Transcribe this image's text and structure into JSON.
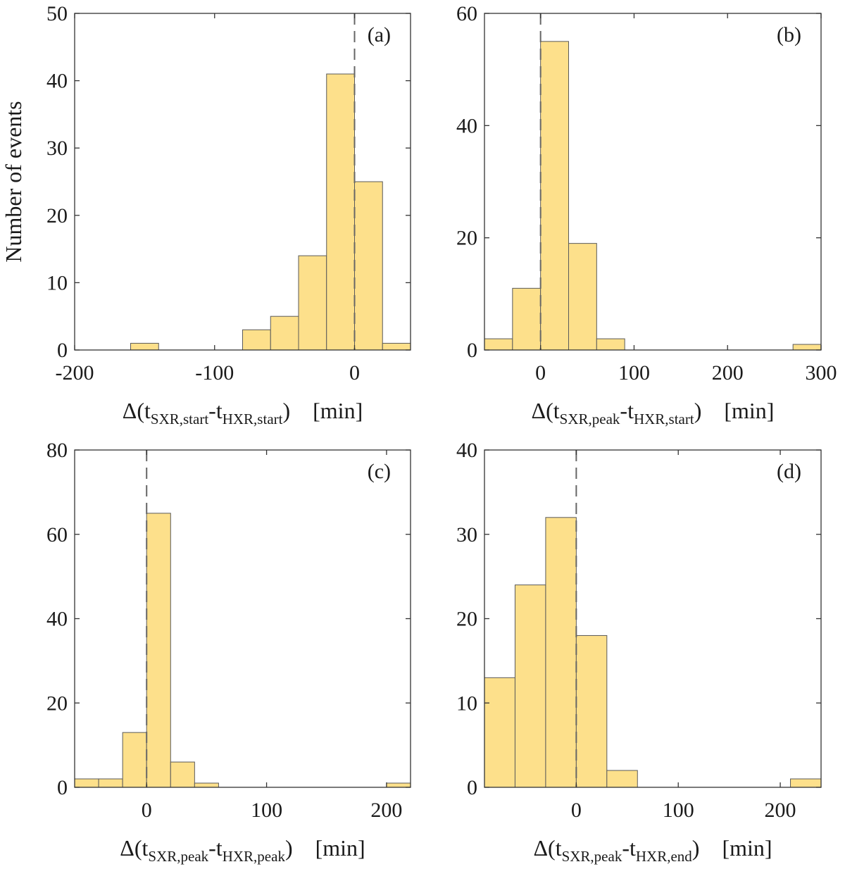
{
  "figure": {
    "bar_color": "#FDE08B",
    "bar_edge_color": "#5A5A5A",
    "zero_line_color": "#666666",
    "ylabel": "Number of events"
  },
  "chart_data": [
    {
      "type": "bar",
      "panel_label": "(a)",
      "xlabel": {
        "prefix": "Δ(t",
        "sub1": "SXR,start",
        "mid": "-t",
        "sub2": "HXR,start",
        "suffix": ")",
        "unit": "[min]"
      },
      "ylabel": "Number of events",
      "xlim": [
        -200,
        40
      ],
      "ylim": [
        0,
        50
      ],
      "xticks": [
        -200,
        -100,
        0
      ],
      "yticks": [
        0,
        10,
        20,
        30,
        40,
        50
      ],
      "zero_line": 0,
      "grid": false,
      "bins": [
        {
          "x0": -160,
          "x1": -140,
          "count": 1
        },
        {
          "x0": -80,
          "x1": -60,
          "count": 3
        },
        {
          "x0": -60,
          "x1": -40,
          "count": 5
        },
        {
          "x0": -40,
          "x1": -20,
          "count": 14
        },
        {
          "x0": -20,
          "x1": 0,
          "count": 41
        },
        {
          "x0": 0,
          "x1": 20,
          "count": 25
        },
        {
          "x0": 20,
          "x1": 40,
          "count": 1
        }
      ]
    },
    {
      "type": "bar",
      "panel_label": "(b)",
      "xlabel": {
        "prefix": "Δ(t",
        "sub1": "SXR,peak",
        "mid": "-t",
        "sub2": "HXR,start",
        "suffix": ")",
        "unit": "[min]"
      },
      "ylabel": "",
      "xlim": [
        -60,
        300
      ],
      "ylim": [
        0,
        60
      ],
      "xticks": [
        0,
        100,
        200,
        300
      ],
      "yticks": [
        0,
        20,
        40,
        60
      ],
      "zero_line": 0,
      "grid": false,
      "bins": [
        {
          "x0": -60,
          "x1": -30,
          "count": 2
        },
        {
          "x0": -30,
          "x1": 0,
          "count": 11
        },
        {
          "x0": 0,
          "x1": 30,
          "count": 55
        },
        {
          "x0": 30,
          "x1": 60,
          "count": 19
        },
        {
          "x0": 60,
          "x1": 90,
          "count": 2
        },
        {
          "x0": 270,
          "x1": 300,
          "count": 1
        }
      ]
    },
    {
      "type": "bar",
      "panel_label": "(c)",
      "xlabel": {
        "prefix": "Δ(t",
        "sub1": "SXR,peak",
        "mid": "-t",
        "sub2": "HXR,peak",
        "suffix": ")",
        "unit": "[min]"
      },
      "ylabel": "",
      "xlim": [
        -60,
        220
      ],
      "ylim": [
        0,
        80
      ],
      "xticks": [
        0,
        100,
        200
      ],
      "yticks": [
        0,
        20,
        40,
        60,
        80
      ],
      "zero_line": 0,
      "grid": false,
      "bins": [
        {
          "x0": -60,
          "x1": -40,
          "count": 2
        },
        {
          "x0": -40,
          "x1": -20,
          "count": 2
        },
        {
          "x0": -20,
          "x1": 0,
          "count": 13
        },
        {
          "x0": 0,
          "x1": 20,
          "count": 65
        },
        {
          "x0": 20,
          "x1": 40,
          "count": 6
        },
        {
          "x0": 40,
          "x1": 60,
          "count": 1
        },
        {
          "x0": 200,
          "x1": 220,
          "count": 1
        }
      ]
    },
    {
      "type": "bar",
      "panel_label": "(d)",
      "xlabel": {
        "prefix": "Δ(t",
        "sub1": "SXR,peak",
        "mid": "-t",
        "sub2": "HXR,end",
        "suffix": ")",
        "unit": "[min]"
      },
      "ylabel": "",
      "xlim": [
        -90,
        240
      ],
      "ylim": [
        0,
        40
      ],
      "xticks": [
        0,
        100,
        200
      ],
      "yticks": [
        0,
        10,
        20,
        30,
        40
      ],
      "zero_line": 0,
      "grid": false,
      "bins": [
        {
          "x0": -90,
          "x1": -60,
          "count": 13
        },
        {
          "x0": -60,
          "x1": -30,
          "count": 24
        },
        {
          "x0": -30,
          "x1": 0,
          "count": 32
        },
        {
          "x0": 0,
          "x1": 30,
          "count": 18
        },
        {
          "x0": 30,
          "x1": 60,
          "count": 2
        },
        {
          "x0": 210,
          "x1": 240,
          "count": 1
        }
      ]
    }
  ]
}
